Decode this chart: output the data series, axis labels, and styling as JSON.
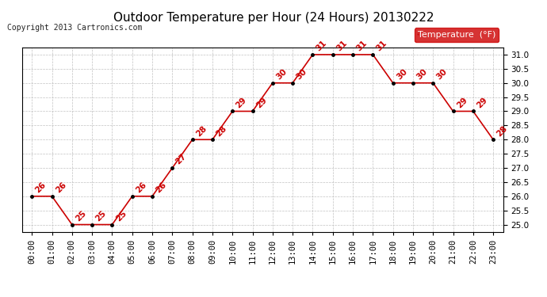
{
  "title": "Outdoor Temperature per Hour (24 Hours) 20130222",
  "copyright": "Copyright 2013 Cartronics.com",
  "legend_label": "Temperature  (°F)",
  "hours": [
    "00:00",
    "01:00",
    "02:00",
    "03:00",
    "04:00",
    "05:00",
    "06:00",
    "07:00",
    "08:00",
    "09:00",
    "10:00",
    "11:00",
    "12:00",
    "13:00",
    "14:00",
    "15:00",
    "16:00",
    "17:00",
    "18:00",
    "19:00",
    "20:00",
    "21:00",
    "22:00",
    "23:00"
  ],
  "temps": [
    26,
    26,
    25,
    25,
    25,
    26,
    26,
    27,
    28,
    28,
    29,
    29,
    30,
    30,
    31,
    31,
    31,
    31,
    30,
    30,
    30,
    29,
    29,
    28
  ],
  "ylim": [
    24.75,
    31.25
  ],
  "yticks": [
    25.0,
    25.5,
    26.0,
    26.5,
    27.0,
    27.5,
    28.0,
    28.5,
    29.0,
    29.5,
    30.0,
    30.5,
    31.0
  ],
  "line_color": "#cc0000",
  "marker_color": "#000000",
  "label_color": "#cc0000",
  "bg_color": "#ffffff",
  "grid_color": "#bbbbbb",
  "title_fontsize": 11,
  "label_fontsize": 7.5,
  "tick_fontsize": 7.5,
  "copyright_fontsize": 7,
  "legend_bg": "#cc0000",
  "legend_text_color": "#ffffff",
  "legend_fontsize": 8
}
